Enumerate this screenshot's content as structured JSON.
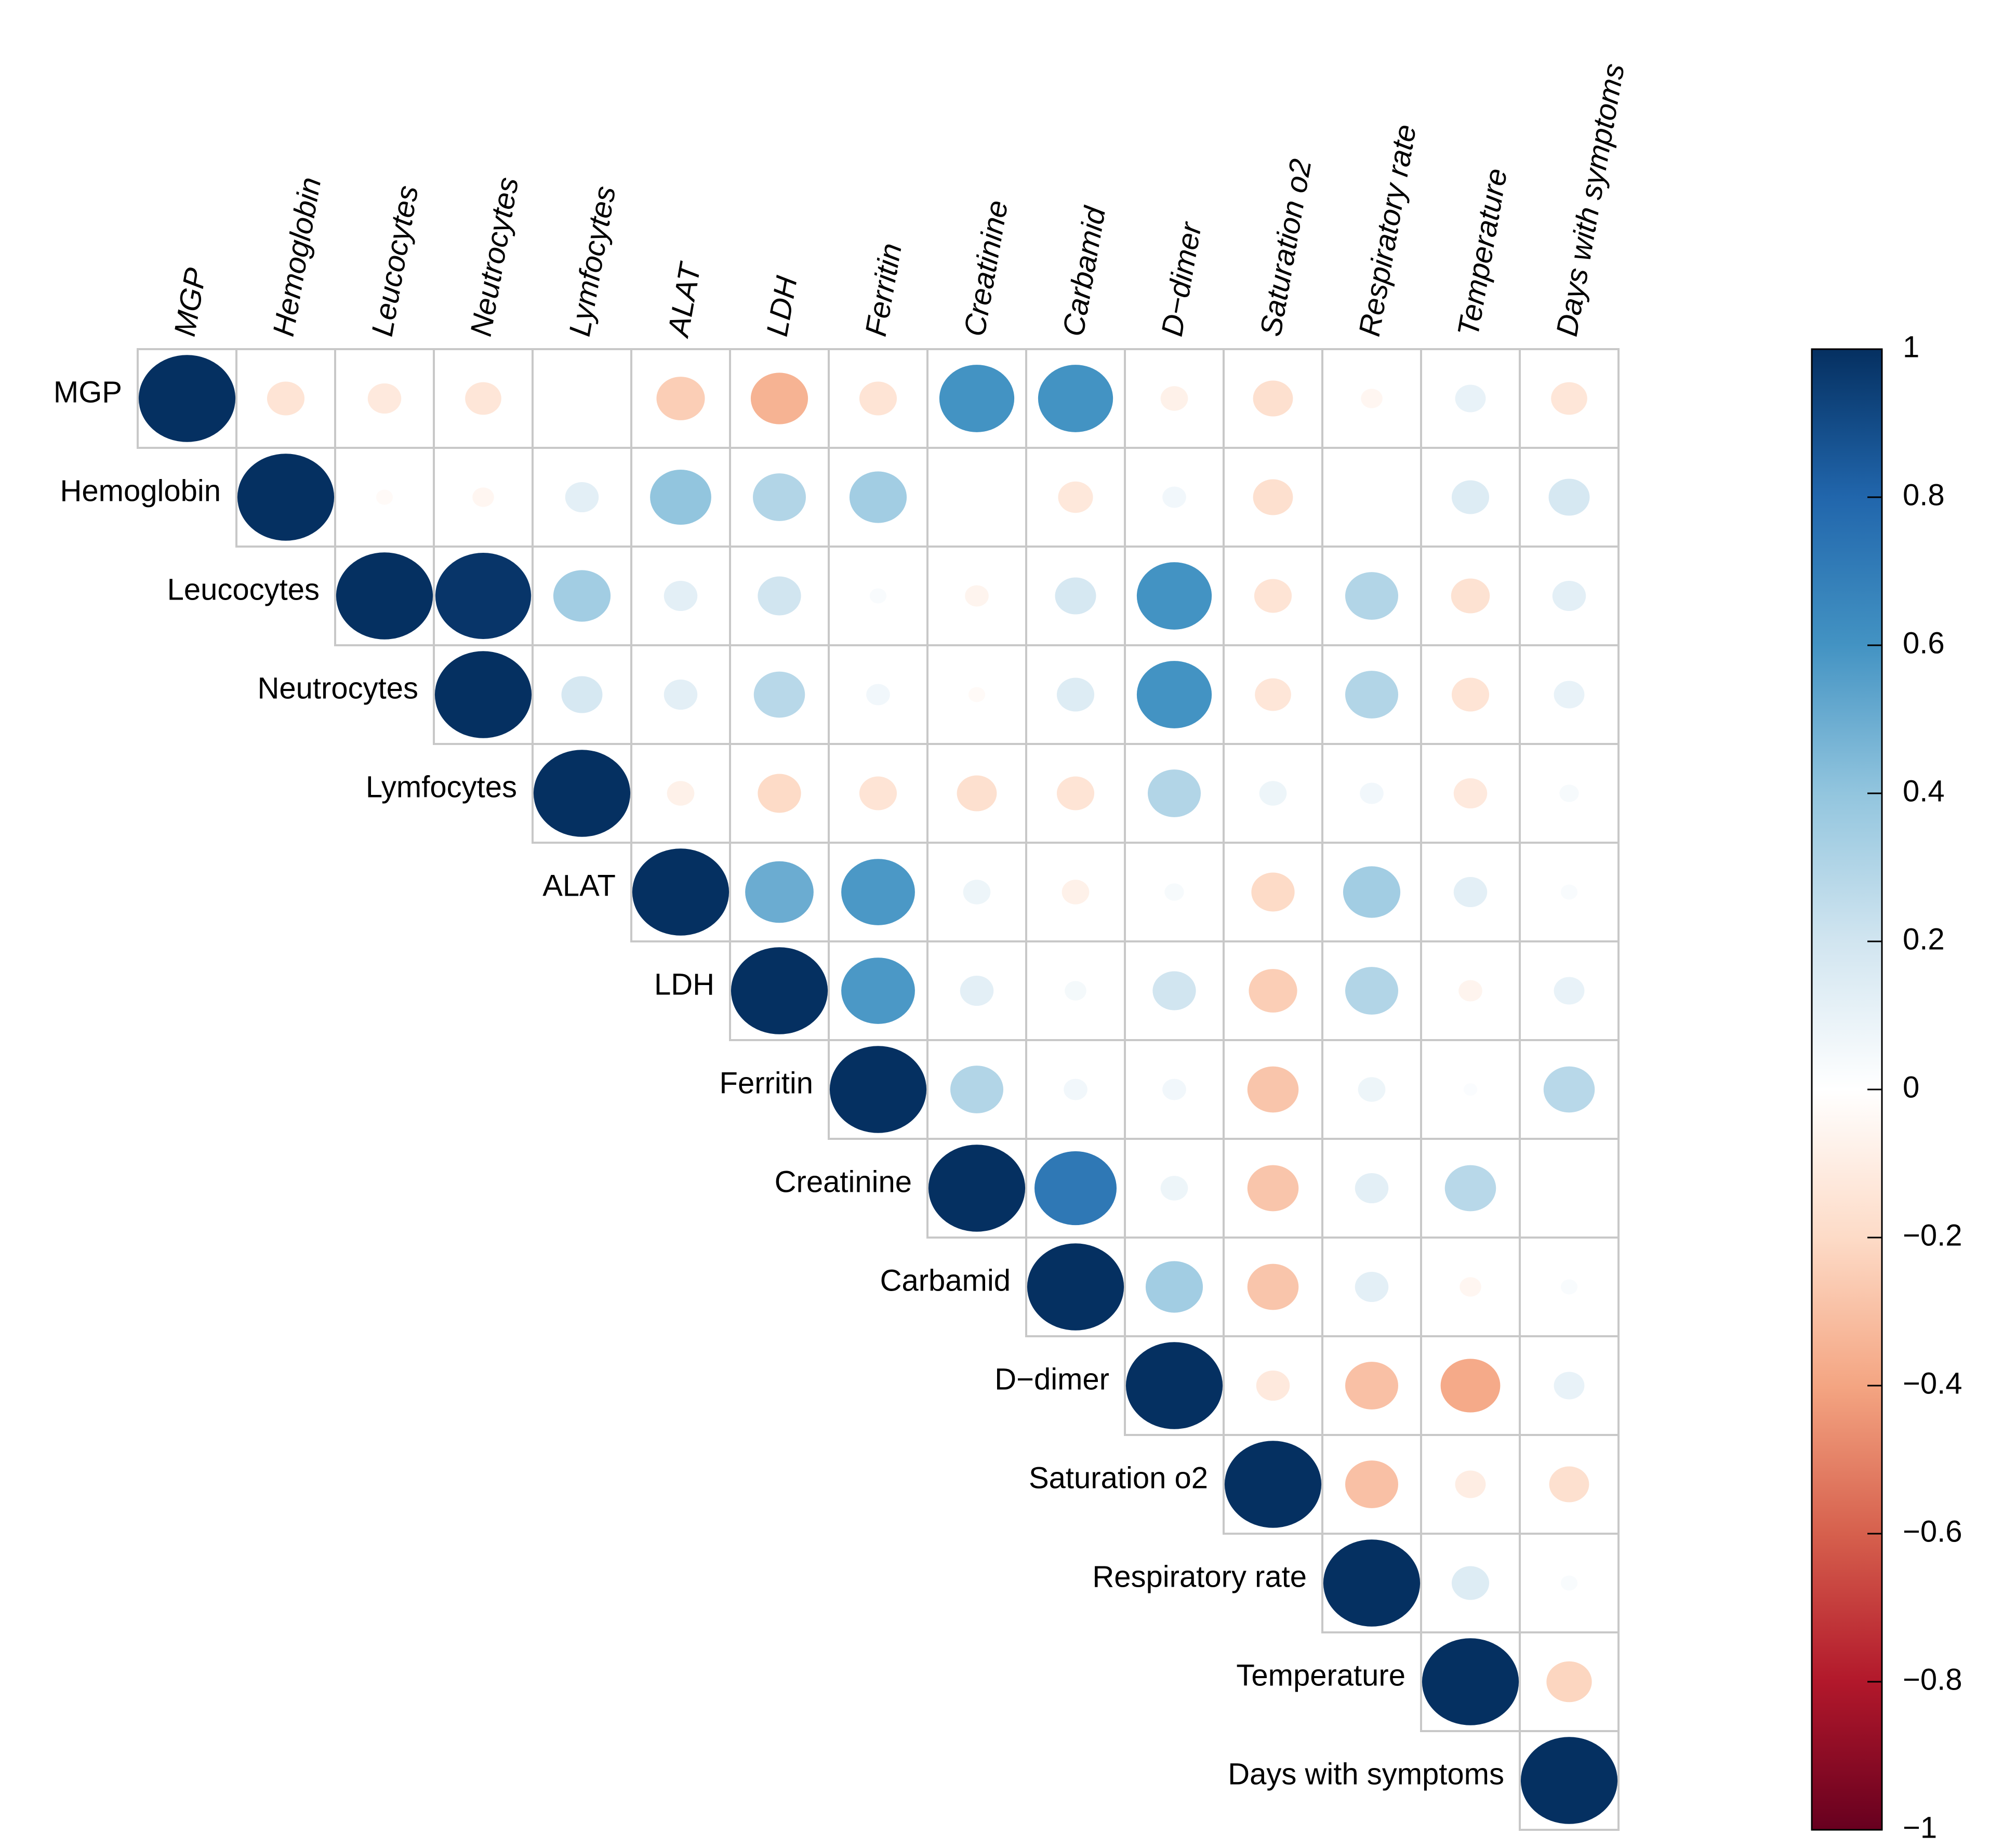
{
  "chart_data": {
    "type": "heatmap",
    "style": "upper-triangular correlation matrix with circle glyphs",
    "variables": [
      "MGP",
      "Hemoglobin",
      "Leucocytes",
      "Neutrocytes",
      "Lymfocytes",
      "ALAT",
      "LDH",
      "Ferritin",
      "Creatinine",
      "Carbamid",
      "D−dimer",
      "Saturation o2",
      "Respiratory rate",
      "Temperature",
      "Days with symptoms"
    ],
    "matrix": [
      [
        1.0,
        -0.15,
        -0.12,
        -0.14,
        0.0,
        -0.25,
        -0.35,
        -0.15,
        0.6,
        0.6,
        -0.08,
        -0.17,
        -0.05,
        0.1,
        -0.14
      ],
      [
        -0.15,
        1.0,
        -0.03,
        -0.05,
        0.12,
        0.4,
        0.3,
        0.35,
        0.0,
        -0.13,
        0.06,
        -0.17,
        0.0,
        0.15,
        0.18
      ],
      [
        -0.12,
        -0.03,
        1.0,
        0.98,
        0.35,
        0.12,
        0.2,
        0.03,
        -0.06,
        0.18,
        0.6,
        -0.15,
        0.3,
        -0.16,
        0.12
      ],
      [
        -0.14,
        -0.05,
        0.98,
        1.0,
        0.18,
        0.12,
        0.28,
        0.06,
        -0.03,
        0.15,
        0.6,
        -0.14,
        0.3,
        -0.15,
        0.1
      ],
      [
        0.0,
        0.12,
        0.35,
        0.18,
        1.0,
        -0.08,
        -0.2,
        -0.15,
        -0.17,
        -0.15,
        0.3,
        0.08,
        0.06,
        -0.12,
        0.04
      ],
      [
        -0.25,
        0.4,
        0.12,
        0.12,
        -0.08,
        1.0,
        0.5,
        0.58,
        0.08,
        -0.08,
        0.04,
        -0.2,
        0.35,
        0.12,
        0.03
      ],
      [
        -0.35,
        0.3,
        0.2,
        0.28,
        -0.2,
        0.5,
        1.0,
        0.58,
        0.12,
        0.05,
        0.2,
        -0.25,
        0.3,
        -0.06,
        0.1
      ],
      [
        -0.15,
        0.35,
        0.03,
        0.06,
        -0.15,
        0.58,
        0.58,
        1.0,
        0.3,
        0.06,
        0.06,
        -0.28,
        0.08,
        0.02,
        0.28
      ],
      [
        0.6,
        0.0,
        -0.06,
        -0.03,
        -0.17,
        0.08,
        0.12,
        0.3,
        1.0,
        0.72,
        0.08,
        -0.28,
        0.12,
        0.28,
        0.0
      ],
      [
        0.6,
        -0.13,
        0.18,
        0.15,
        -0.15,
        -0.08,
        0.05,
        0.06,
        0.72,
        1.0,
        0.35,
        -0.28,
        0.12,
        -0.05,
        0.03
      ],
      [
        -0.08,
        0.06,
        0.6,
        0.6,
        0.3,
        0.04,
        0.2,
        0.06,
        0.08,
        0.35,
        1.0,
        -0.12,
        -0.3,
        -0.38,
        0.1
      ],
      [
        -0.17,
        -0.17,
        -0.15,
        -0.14,
        0.08,
        -0.2,
        -0.25,
        -0.28,
        -0.28,
        -0.28,
        -0.12,
        1.0,
        -0.3,
        -0.1,
        -0.17
      ],
      [
        -0.05,
        0.0,
        0.3,
        0.3,
        0.06,
        0.35,
        0.3,
        0.08,
        0.12,
        0.12,
        -0.3,
        -0.3,
        1.0,
        0.15,
        0.03
      ],
      [
        0.1,
        0.15,
        -0.16,
        -0.15,
        -0.12,
        0.12,
        -0.06,
        0.02,
        0.28,
        -0.05,
        -0.38,
        -0.1,
        0.15,
        1.0,
        -0.22
      ],
      [
        -0.14,
        0.18,
        0.12,
        0.1,
        0.04,
        0.03,
        0.1,
        0.28,
        0.0,
        0.03,
        0.1,
        -0.17,
        0.03,
        -0.22,
        1.0
      ]
    ],
    "colorbar": {
      "range": [
        -1,
        1
      ],
      "ticks": [
        1,
        0.8,
        0.6,
        0.4,
        0.2,
        0,
        -0.2,
        -0.4,
        -0.6,
        -0.8,
        -1
      ],
      "tick_labels": [
        "1",
        "0.8",
        "0.6",
        "0.4",
        "0.2",
        "0",
        "−0.2",
        "−0.4",
        "−0.6",
        "−0.8",
        "−1"
      ],
      "placement": "right"
    },
    "palette": {
      "positive_strong": "#053061",
      "positive_mid": "#2166ac",
      "positive_light": "#4393c3",
      "positive_pale": "#92c5de",
      "positive_faint": "#d1e5f0",
      "neutral": "#ffffff",
      "negative_faint": "#fddbc7",
      "negative_pale": "#f4a582",
      "negative_light": "#d6604d",
      "negative_mid": "#b2182b",
      "negative_strong": "#67001f"
    },
    "grid_color": "#c8c8c8",
    "title": "",
    "xlabel": "",
    "ylabel": ""
  }
}
